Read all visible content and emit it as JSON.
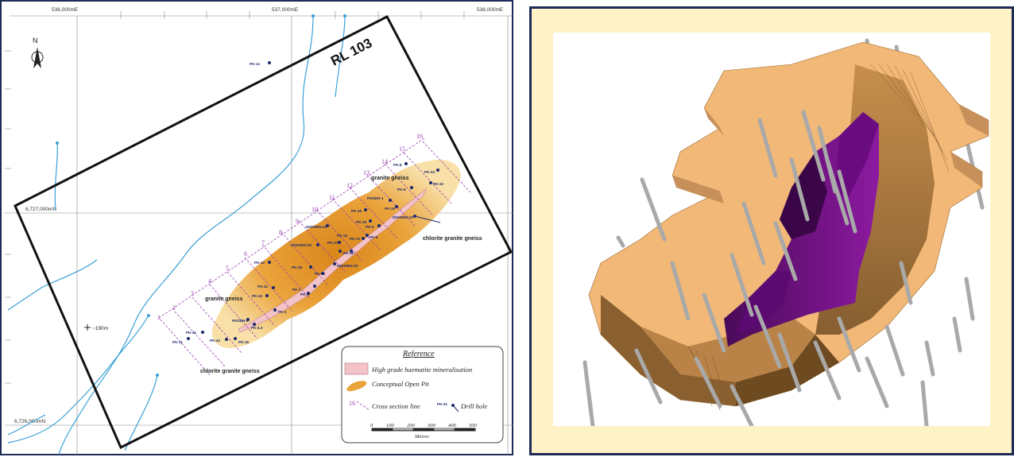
{
  "map": {
    "grid": {
      "easting": [
        "536,000mE",
        "537,000mE",
        "538,000mE"
      ],
      "northing": [
        "6,727,000mN",
        "6,726,000mN"
      ]
    },
    "north_arrow": "N",
    "block_label": "RL 103",
    "spot_height": "~190m",
    "rock_labels": [
      "granite gneiss",
      "granite gneiss",
      "chlorite granite gneiss",
      "chlorite granite gneiss"
    ],
    "section_numbers": [
      "1",
      "2",
      "3",
      "4",
      "5",
      "6",
      "7",
      "8",
      "9",
      "10",
      "11",
      "12",
      "13",
      "14",
      "15",
      "16"
    ],
    "drill_holes": [
      "PK-14",
      "PK-11",
      "PK-41",
      "PK-42",
      "PK-16",
      "PKDDH-2",
      "PK-4.3",
      "PK-2",
      "PK-40",
      "PK-41",
      "PK-7",
      "PK-1",
      "PK-12",
      "PK-39",
      "PK-38",
      "DDHSEN-19",
      "DDHSEN-20",
      "DDHSEN-21",
      "PK-36",
      "PK-37",
      "PK-13",
      "PK-6",
      "PK-35",
      "PK-18",
      "PKDDH-1",
      "PK-19",
      "PK-9",
      "PK-8",
      "PK-33",
      "PK-32",
      "DDHSEN-22",
      "PK-5",
      "PK-15"
    ],
    "legend": {
      "title": "Reference",
      "items": [
        {
          "label": "High grade haematite mineralisation",
          "icon": "pink-rect"
        },
        {
          "label": "Conceptual Open Pit",
          "icon": "orange-pit"
        },
        {
          "label": "Cross section line",
          "icon": "dashed-line",
          "num": "16"
        },
        {
          "label": "Drill hole",
          "icon": "drill-hole",
          "code": "PK-31"
        }
      ],
      "scale_ticks": [
        "0",
        "100",
        "200",
        "300",
        "400",
        "500"
      ],
      "scale_unit": "Metres"
    },
    "colors": {
      "river": "#3aa0d8",
      "section": "#9a3fb0",
      "hole": "#1f2a6b",
      "pit": "#f2a72a",
      "ore": "#f3c3c8"
    }
  },
  "model": {
    "colors": {
      "pit": "#f2b877",
      "pit_shade": "#a9773a",
      "ore": "#7a1390",
      "drill": "#a9a9a9",
      "bg": "#fdf3c6"
    }
  }
}
